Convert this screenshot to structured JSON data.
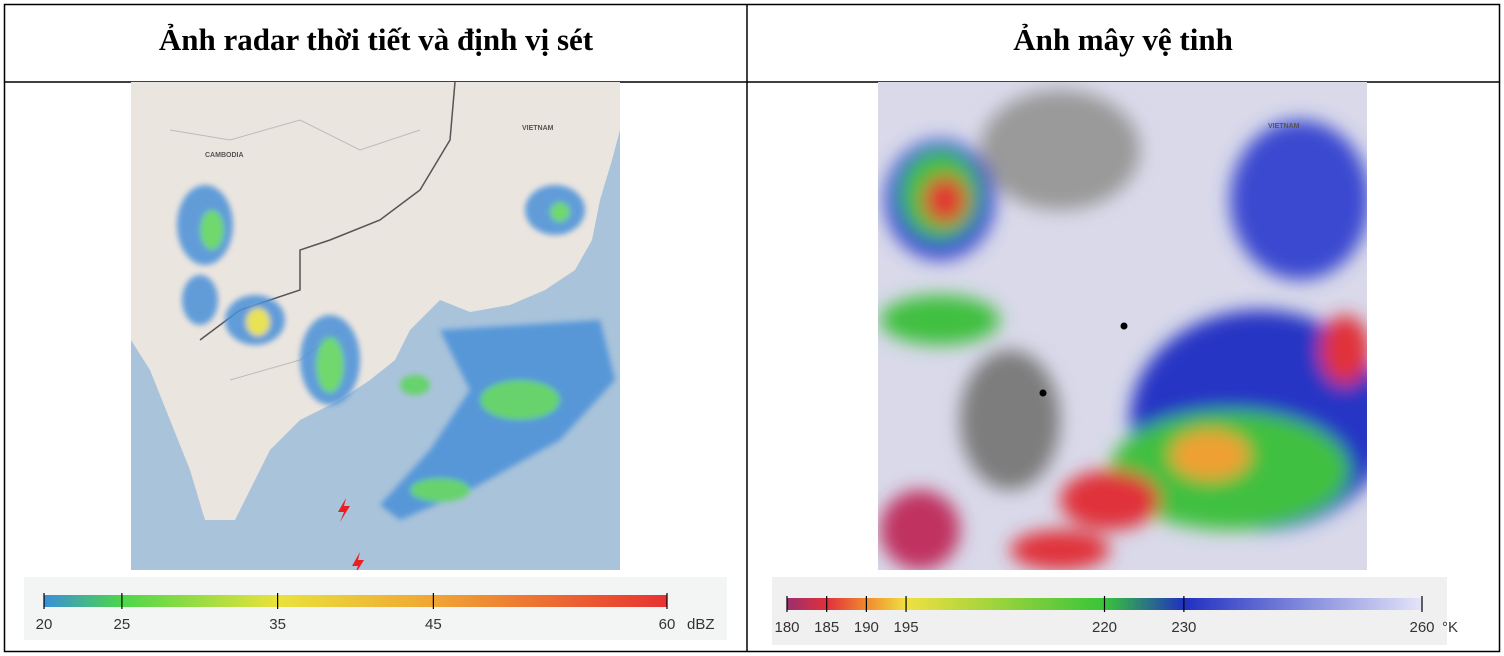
{
  "table": {
    "headers": [
      "Ảnh radar thời tiết và định vị sét",
      "Ảnh mây vệ tinh"
    ]
  },
  "radar": {
    "map_labels": [
      "VIETNAM",
      "CAMBODIA"
    ],
    "legend": {
      "ticks": [
        20,
        25,
        35,
        45,
        60
      ],
      "colors": [
        "#3b8fd9",
        "#4dd64a",
        "#e9e23c",
        "#f0a634",
        "#e83232"
      ],
      "unit": "dBZ"
    }
  },
  "satellite": {
    "map_labels": [
      "VIETNAM"
    ],
    "legend": {
      "ticks": [
        180,
        185,
        190,
        195,
        220,
        230,
        260
      ],
      "colors": [
        "#9b2f6e",
        "#e0303a",
        "#f08a30",
        "#f0e040",
        "#38c43a",
        "#2030c0",
        "#e4e4f8"
      ],
      "unit": "°K"
    }
  }
}
